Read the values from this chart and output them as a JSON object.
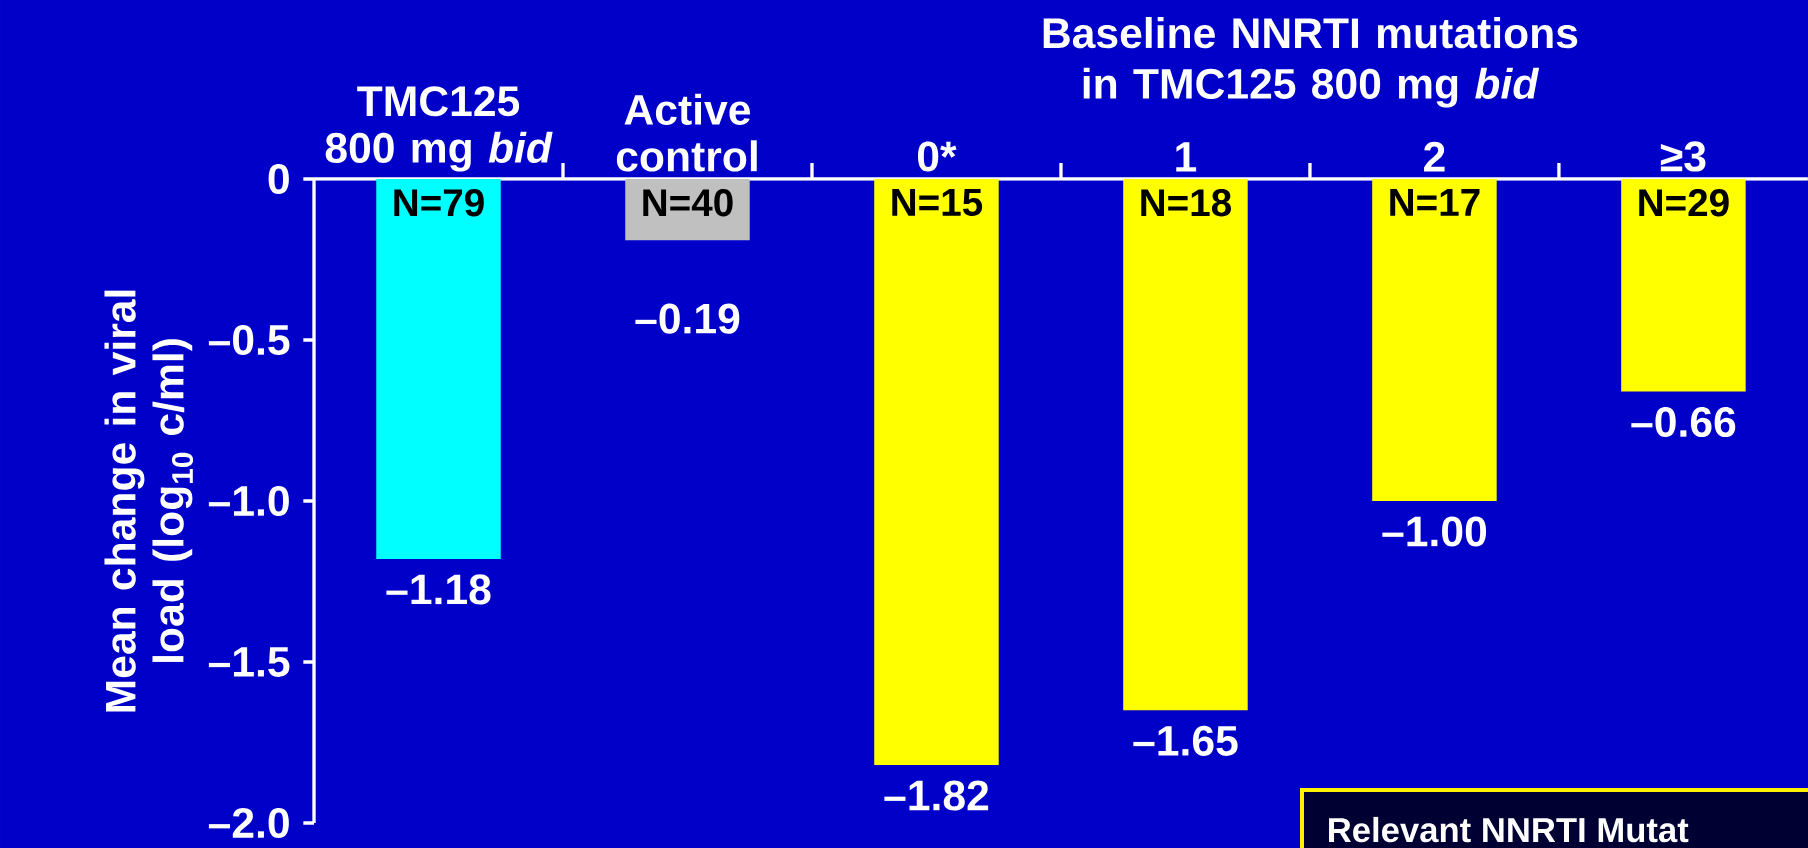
{
  "chart_data": {
    "type": "bar",
    "ylabel": "Mean change in viral load (log$_{10}$ c/ml)",
    "categories": [
      "TMC125 800 mg *bid*",
      "Active control",
      "0*",
      "1",
      "2",
      "≥3"
    ],
    "values": [
      -1.18,
      -0.19,
      -1.82,
      -1.65,
      -1.0,
      -0.66
    ],
    "colors": [
      "#00ffff",
      "#c0c0c0",
      "#ffff00",
      "#ffff00",
      "#ffff00",
      "#ffff00"
    ],
    "value_labels": [
      "–1.18",
      "–0.19",
      "–1.82",
      "–1.65",
      "–1.00",
      "–0.66"
    ],
    "ylim": [
      -2.0,
      0
    ],
    "yticks": [
      0,
      {
        "value": -0.5,
        "label": "–0.5"
      },
      {
        "value": -1.0,
        "label": "–1.0"
      },
      {
        "value": -1.5,
        "label": "–1.5"
      },
      {
        "value": -2.0,
        "label": "–2.0"
      }
    ],
    "annotations": [
      "Baseline NNRTI mutations in TMC125 800 mg *bid*",
      "Relevant NNRTI Mutat",
      "N=79",
      "N=40",
      "N=15",
      "N=18",
      "N=17",
      "N=29"
    ]
  }
}
